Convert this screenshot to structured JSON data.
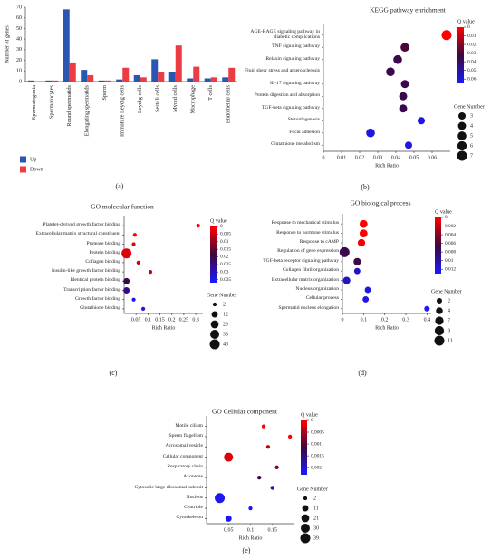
{
  "chart_data": [
    {
      "type": "bar",
      "panel_label": "(a)",
      "ylabel": "Number of genes",
      "categories": [
        "Spermatogonia",
        "Spermatocytes",
        "Round spermatids",
        "Elongating spermatids",
        "Sperm",
        "Immature Leydig cells",
        "Leydig cells",
        "Sertoli cells",
        "Myoid cells",
        "Macrophage",
        "T cells",
        "Endothelial cells"
      ],
      "series": [
        {
          "name": "Up",
          "color": "#2b55b3",
          "values": [
            1,
            1,
            68,
            11,
            1,
            2,
            6,
            21,
            9,
            3,
            3,
            4
          ]
        },
        {
          "name": "Down",
          "color": "#ee3b43",
          "values": [
            0,
            1,
            18,
            6,
            1,
            13,
            4,
            9,
            34,
            14,
            4,
            13
          ]
        }
      ],
      "ylim": [
        0,
        70
      ],
      "yticks": [
        0,
        10,
        20,
        30,
        40,
        50,
        60,
        70
      ],
      "legend": "bottom-left"
    },
    {
      "type": "dot",
      "panel_label": "(b)",
      "title": "KEGG pathway enrichment",
      "xlabel": "Rich Ratio",
      "categories": [
        "AGE-RAGE signaling pathway in diabetic complications",
        "TNF signaling pathway",
        "Relaxin signaling pathway",
        "Fluid shear stress and atherosclerosis",
        "IL-17 signaling pathway",
        "Protein digestion and absorption",
        "TGF-beta signaling pathway",
        "Steroidogenesis",
        "Focal adhesion",
        "Glutathione metabolism"
      ],
      "values": [
        0.068,
        0.045,
        0.041,
        0.037,
        0.045,
        0.044,
        0.044,
        0.054,
        0.026,
        0.047
      ],
      "q_values": [
        0,
        0.03,
        0.035,
        0.035,
        0.035,
        0.035,
        0.035,
        0.06,
        0.06,
        0.06
      ],
      "gene_numbers": [
        7,
        5,
        5,
        5,
        4,
        4,
        4,
        3,
        5,
        3
      ],
      "xlim": [
        0,
        0.07
      ],
      "xticks": [
        0,
        0.01,
        0.02,
        0.03,
        0.04,
        0.05,
        0.06
      ],
      "colorbar": {
        "title": "Q value",
        "lim": [
          0,
          0.065
        ],
        "ticks": [
          0,
          0.01,
          0.02,
          0.03,
          0.04,
          0.05,
          0.06
        ]
      },
      "size_legend": {
        "title": "Gene Number",
        "values": [
          3,
          4,
          5,
          6,
          7
        ]
      }
    },
    {
      "type": "dot",
      "panel_label": "(c)",
      "title": "GO molecular function",
      "xlabel": "Rich Ratio",
      "categories": [
        "Platelet-derived growth factor binding",
        "Extracellular matrix structural constituent",
        "Protease binding",
        "Protein binding",
        "Collagen binding",
        "Insulin-like growth factor binding",
        "Identical protein binding",
        "Transcription factor binding",
        "Growth factor binding",
        "Glutathione binding"
      ],
      "values": [
        0.31,
        0.045,
        0.04,
        0.01,
        0.06,
        0.11,
        0.01,
        0.01,
        0.04,
        0.08
      ],
      "q_values": [
        0,
        0,
        0.002,
        0.003,
        0.005,
        0.005,
        0.02,
        0.025,
        0.035,
        0.035
      ],
      "gene_numbers": [
        2,
        2,
        2,
        43,
        2,
        2,
        12,
        12,
        2,
        2
      ],
      "xlim": [
        0,
        0.33
      ],
      "xticks": [
        0.05,
        0.1,
        0.15,
        0.2,
        0.25,
        0.3
      ],
      "colorbar": {
        "title": "Q value",
        "lim": [
          0,
          0.037
        ],
        "ticks": [
          0,
          0.005,
          0.01,
          0.015,
          0.02,
          0.025,
          0.03,
          0.035
        ]
      },
      "size_legend": {
        "title": "Gene Number",
        "values": [
          2,
          12,
          23,
          33,
          43
        ]
      }
    },
    {
      "type": "dot",
      "panel_label": "(d)",
      "title": "GO biological process",
      "xlabel": "Rich Ratio",
      "categories": [
        "Response to mechanical stimulus",
        "Response to hormone stimulus",
        "Response to cAMP",
        "Regulation of gene expression",
        "TGF-beta receptor signaling pathway",
        "Collagen fibril organization",
        "Extracellular matrix organization",
        "Nucleus organization",
        "Cellular process",
        "Spermatid nucleus elongation"
      ],
      "values": [
        0.1,
        0.1,
        0.09,
        0.01,
        0.07,
        0.07,
        0.02,
        0.12,
        0.11,
        0.4
      ],
      "q_values": [
        0,
        0,
        0.0005,
        0.007,
        0.007,
        0.011,
        0.011,
        0.012,
        0.012,
        0.013
      ],
      "gene_numbers": [
        6,
        6,
        5,
        11,
        5,
        3,
        5,
        3,
        3,
        2
      ],
      "xlim": [
        0,
        0.42
      ],
      "xticks": [
        0,
        0.1,
        0.2,
        0.3,
        0.4
      ],
      "colorbar": {
        "title": "Q value",
        "lim": [
          0,
          0.013
        ],
        "ticks": [
          0,
          0.002,
          0.004,
          0.006,
          0.008,
          0.01,
          0.012
        ]
      },
      "size_legend": {
        "title": "Gene Number",
        "values": [
          2,
          4,
          7,
          9,
          11
        ]
      }
    },
    {
      "type": "dot",
      "panel_label": "(e)",
      "title": "GO Cellular component",
      "xlabel": "Rich Ratio",
      "categories": [
        "Motile cilium",
        "Sperm flagellum",
        "Acrosomal vesicle",
        "Cellular component",
        "Respiratory chain",
        "Axoneme",
        "Cytosolic large ribosomal subunit",
        "Nucleus",
        "Centriole",
        "Cytoskeleton"
      ],
      "values": [
        0.13,
        0.19,
        0.14,
        0.05,
        0.16,
        0.12,
        0.15,
        0.03,
        0.1,
        0.05
      ],
      "q_values": [
        0,
        0,
        0.0003,
        0.0002,
        0.0008,
        0.0012,
        0.0018,
        0.0022,
        0.0022,
        0.0022
      ],
      "gene_numbers": [
        2,
        2,
        2,
        30,
        2,
        2,
        2,
        39,
        2,
        11
      ],
      "xlim": [
        0,
        0.2
      ],
      "xticks": [
        0.05,
        0.1,
        0.15
      ],
      "colorbar": {
        "title": "Q value",
        "lim": [
          0,
          0.0023
        ],
        "ticks": [
          0,
          0.0005,
          0.001,
          0.0015,
          0.002
        ]
      },
      "size_legend": {
        "title": "Gene Number",
        "values": [
          2,
          11,
          21,
          30,
          39
        ]
      }
    }
  ]
}
